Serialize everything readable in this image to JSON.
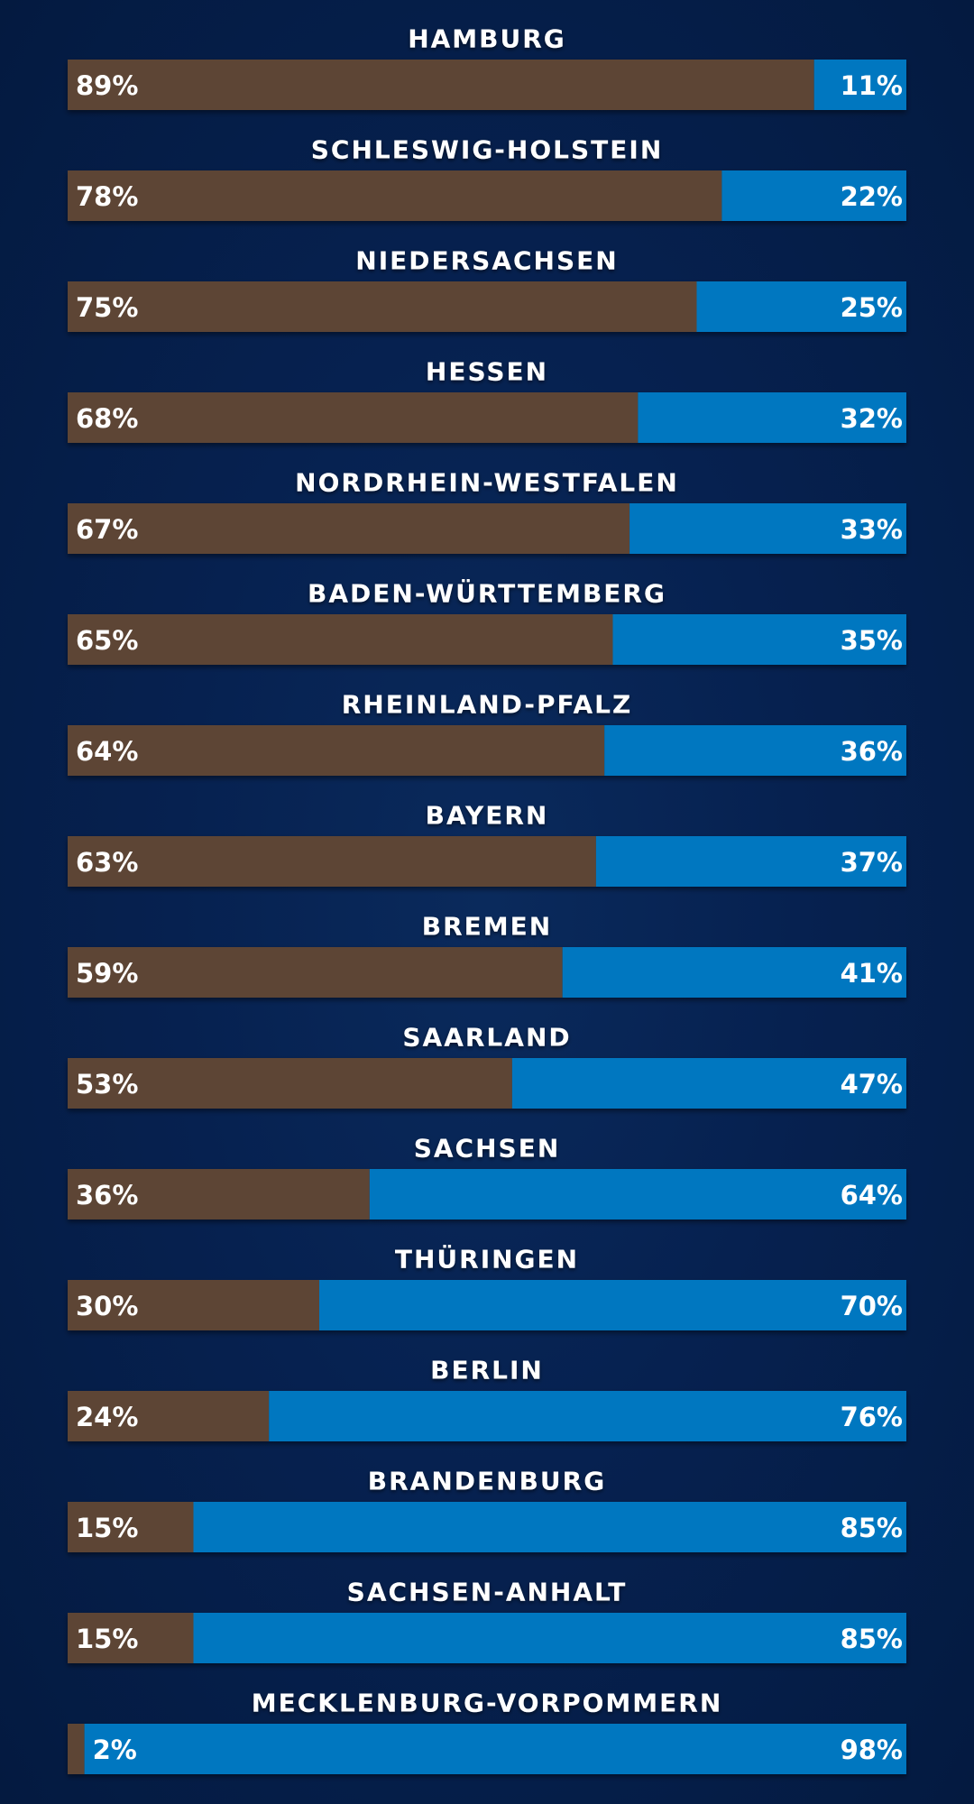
{
  "chart_data": {
    "type": "bar",
    "stacked": true,
    "orientation": "horizontal",
    "ylim": [
      0,
      100
    ],
    "categories": [
      "HAMBURG",
      "SCHLESWIG-HOLSTEIN",
      "NIEDERSACHSEN",
      "HESSEN",
      "NORDRHEIN-WESTFALEN",
      "BADEN-WÜRTTEMBERG",
      "RHEINLAND-PFALZ",
      "BAYERN",
      "BREMEN",
      "SAARLAND",
      "SACHSEN",
      "THÜRINGEN",
      "BERLIN",
      "BRANDENBURG",
      "SACHSEN-ANHALT",
      "MECKLENBURG-VORPOMMERN"
    ],
    "series": [
      {
        "color": "#5d4535",
        "values": [
          89,
          78,
          75,
          68,
          67,
          65,
          64,
          63,
          59,
          53,
          36,
          30,
          24,
          15,
          15,
          2
        ],
        "labels": [
          "89%",
          "78%",
          "75%",
          "68%",
          "67%",
          "65%",
          "64%",
          "63%",
          "59%",
          "53%",
          "36%",
          "30%",
          "24%",
          "15%",
          "15%",
          "2%"
        ]
      },
      {
        "color": "#0277c0",
        "values": [
          11,
          22,
          25,
          32,
          33,
          35,
          36,
          37,
          41,
          47,
          64,
          70,
          76,
          85,
          85,
          98
        ],
        "labels": [
          "11%",
          "22%",
          "25%",
          "32%",
          "33%",
          "35%",
          "36%",
          "37%",
          "41%",
          "47%",
          "64%",
          "70%",
          "76%",
          "85%",
          "85%",
          "98%"
        ]
      }
    ],
    "grid": false,
    "legend": "none"
  }
}
